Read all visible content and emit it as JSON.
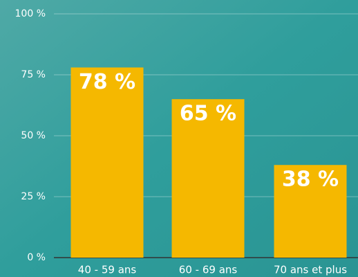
{
  "chart_data": {
    "type": "bar",
    "categories": [
      "40 - 59 ans",
      "60 - 69 ans",
      "70 ans et plus"
    ],
    "values": [
      78,
      65,
      38
    ],
    "value_labels": [
      "78 %",
      "65 %",
      "38 %"
    ],
    "color": "#f5b800",
    "ylim": [
      0,
      100
    ],
    "yticks": [
      {
        "value": 0,
        "label": "0 %"
      },
      {
        "value": 25,
        "label": "25 %"
      },
      {
        "value": 50,
        "label": "50 %"
      },
      {
        "value": 75,
        "label": "75 %"
      },
      {
        "value": 100,
        "label": "100 %"
      }
    ],
    "grid": true
  }
}
